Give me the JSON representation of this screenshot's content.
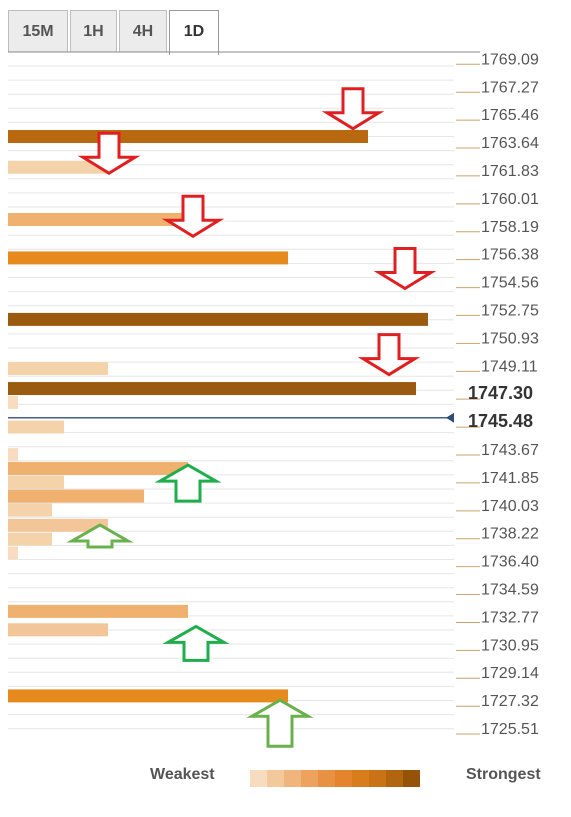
{
  "tabs": [
    {
      "label": "15M",
      "active": false
    },
    {
      "label": "1H",
      "active": false
    },
    {
      "label": "4H",
      "active": false
    },
    {
      "label": "1D",
      "active": true
    }
  ],
  "legend": {
    "weakest_label": "Weakest",
    "strongest_label": "Strongest",
    "colors": [
      "#f7dcc0",
      "#f3c99c",
      "#f0b57c",
      "#eda25e",
      "#e99142",
      "#e4842c",
      "#d97c1c",
      "#c97216",
      "#b2650f",
      "#955309"
    ]
  },
  "chart_data": {
    "type": "bar",
    "orientation": "horizontal",
    "y_axis": {
      "ylim": [
        1724.6,
        1769.5
      ],
      "tick_labels": [
        "1769.09",
        "1767.27",
        "1765.46",
        "1763.64",
        "1761.83",
        "1760.01",
        "1758.19",
        "1756.38",
        "1754.56",
        "1752.75",
        "1750.93",
        "1749.11",
        "1747.30",
        "1745.48",
        "1743.67",
        "1741.85",
        "1740.03",
        "1738.22",
        "1736.40",
        "1734.59",
        "1732.77",
        "1730.95",
        "1729.14",
        "1727.32",
        "1725.51"
      ],
      "tick_values": [
        1769.09,
        1767.27,
        1765.46,
        1763.64,
        1761.83,
        1760.01,
        1758.19,
        1756.38,
        1754.56,
        1752.75,
        1750.93,
        1749.11,
        1747.3,
        1745.48,
        1743.67,
        1741.85,
        1740.03,
        1738.22,
        1736.4,
        1734.59,
        1732.77,
        1730.95,
        1729.14,
        1727.32,
        1725.51
      ],
      "bold_ticks": [
        "1747.30",
        "1745.48"
      ],
      "grid": true
    },
    "current_price": 1745.7,
    "bars": [
      {
        "price": 1764.0,
        "strength": 9,
        "color": "#b8680e"
      },
      {
        "price": 1762.0,
        "strength": 2.5,
        "color": "#f5d3aa"
      },
      {
        "price": 1758.6,
        "strength": 4.5,
        "color": "#f0b06e"
      },
      {
        "price": 1756.1,
        "strength": 7,
        "color": "#e68a1e"
      },
      {
        "price": 1752.1,
        "strength": 10.5,
        "color": "#9a5a10"
      },
      {
        "price": 1748.9,
        "strength": 2.5,
        "color": "#f5d3aa"
      },
      {
        "price": 1747.6,
        "strength": 10.2,
        "color": "#9a5a10"
      },
      {
        "price": 1746.7,
        "strength": 0.25,
        "color": "#f9dcc0"
      },
      {
        "price": 1745.1,
        "strength": 1.4,
        "color": "#f5d3aa"
      },
      {
        "price": 1743.3,
        "strength": 0.25,
        "color": "#f9dcc0"
      },
      {
        "price": 1742.4,
        "strength": 4.5,
        "color": "#f0b06e"
      },
      {
        "price": 1741.5,
        "strength": 1.4,
        "color": "#f5d3aa"
      },
      {
        "price": 1740.6,
        "strength": 3.4,
        "color": "#f0b06e"
      },
      {
        "price": 1739.7,
        "strength": 1.1,
        "color": "#f5d3aa"
      },
      {
        "price": 1738.7,
        "strength": 2.5,
        "color": "#f3c699"
      },
      {
        "price": 1737.8,
        "strength": 1.1,
        "color": "#f5d3aa"
      },
      {
        "price": 1736.9,
        "strength": 0.25,
        "color": "#f9dcc0"
      },
      {
        "price": 1733.1,
        "strength": 4.5,
        "color": "#f0b06e"
      },
      {
        "price": 1731.9,
        "strength": 2.5,
        "color": "#f3c699"
      },
      {
        "price": 1727.6,
        "strength": 7,
        "color": "#e68a1e"
      }
    ],
    "resistance_arrows": [
      {
        "price": 1764.9,
        "strength": 9
      },
      {
        "price": 1762.0,
        "strength": 2.9
      },
      {
        "price": 1757.9,
        "strength": 5
      },
      {
        "price": 1754.5,
        "strength": 10.3
      },
      {
        "price": 1748.9,
        "strength": 9.9
      }
    ],
    "support_arrows": [
      {
        "price": 1742.1,
        "strength": 4.5
      },
      {
        "price": 1738.2,
        "strength": 2.3
      },
      {
        "price": 1731.6,
        "strength": 4.7
      },
      {
        "price": 1726.8,
        "strength": 6.8
      }
    ],
    "xlim": [
      0,
      11.5
    ]
  }
}
